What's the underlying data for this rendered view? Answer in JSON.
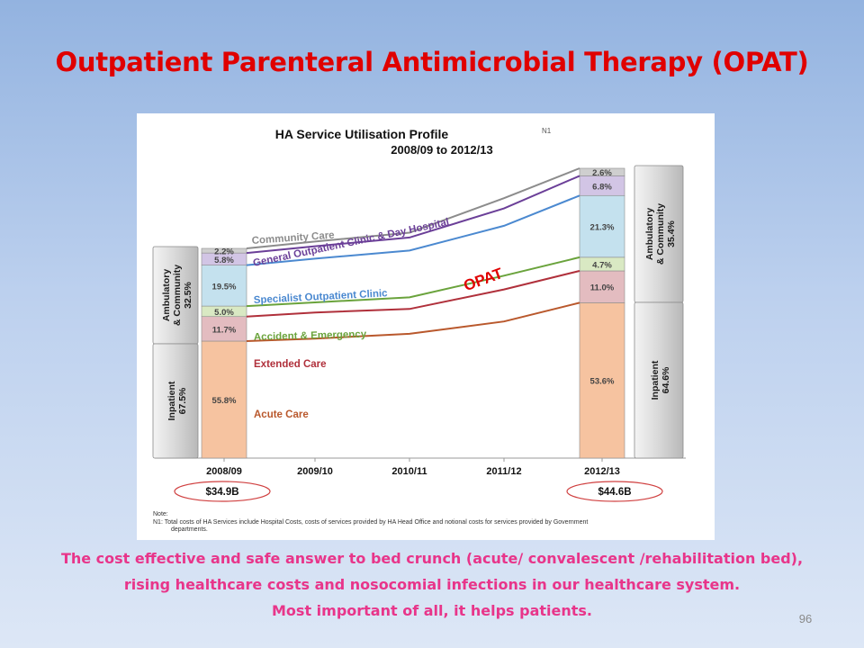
{
  "slide": {
    "title": "Outpatient Parenteral Antimicrobial Therapy (OPAT)",
    "captions": [
      "The cost effective and safe answer to bed crunch (acute/ convalescent /rehabilitation bed),",
      "rising healthcare costs and nosocomial infections in our healthcare system.",
      "Most important of all, it helps patients."
    ],
    "page_number": "96",
    "colors": {
      "title": "#e00000",
      "caption": "#e8358a",
      "opat_label": "#e00000"
    }
  },
  "chart_data": {
    "type": "area",
    "title": "HA Service Utilisation Profile",
    "title_note": "N1",
    "subtitle": "2008/09 to 2012/13",
    "categories": [
      "2008/09",
      "2009/10",
      "2010/11",
      "2011/12",
      "2012/13"
    ],
    "total_costs": {
      "2008/09": "$34.9B",
      "2012/13": "$44.6B"
    },
    "series": [
      {
        "name": "Acute Care",
        "color": "#f6c3a0",
        "line": "#b9582c",
        "share_2008_09": "55.8%",
        "share_2012_13": "53.6%",
        "index": [
          0,
          0.55,
          1.6,
          4.3,
          8.4
        ]
      },
      {
        "name": "Extended Care",
        "color": "#e3bcc0",
        "line": "#b0303b",
        "share_2008_09": "11.7%",
        "share_2012_13": "11.0%",
        "index": [
          0,
          0.85,
          1.6,
          5.7,
          9.6
        ]
      },
      {
        "name": "Accident & Emergency",
        "color": "#d9e9c3",
        "line": "#6aa33c",
        "share_2008_09": "5.0%",
        "share_2012_13": "4.7%",
        "index": [
          0,
          0.75,
          1.8,
          6.3,
          10.1
        ]
      },
      {
        "name": "Specialist Outpatient Clinic",
        "color": "#c4e1ee",
        "line": "#4b89d0",
        "share_2008_09": "19.5%",
        "share_2012_13": "21.3%",
        "index": [
          0,
          1.3,
          2.9,
          7.8,
          13.8
        ]
      },
      {
        "name": "General Outpatient Clinic & Day Hospital",
        "color": "#d2c5e5",
        "line": "#6b3f98",
        "share_2008_09": "5.8%",
        "share_2012_13": "6.8%",
        "index": [
          0,
          1.3,
          3.0,
          8.6,
          14.9
        ]
      },
      {
        "name": "Community Care",
        "color": "#cfcfcf",
        "line": "#8c8c8c",
        "share_2008_09": "2.2%",
        "share_2012_13": "2.6%",
        "index": [
          0,
          1.3,
          3.0,
          9.6,
          15.3
        ]
      }
    ],
    "groups": {
      "2008/09": [
        {
          "label": "Ambulatory & Community",
          "value": "32.5%"
        },
        {
          "label": "Inpatient",
          "value": "67.5%"
        }
      ],
      "2012/13": [
        {
          "label": "Ambulatory & Community",
          "value": "35.4%"
        },
        {
          "label": "Inpatient",
          "value": "64.6%"
        }
      ]
    },
    "annotation": "OPAT",
    "note_heading": "Note:",
    "note_text": "N1:  Total costs of HA Services include Hospital Costs, costs of services provided by HA Head Office and notional costs for services provided by Government departments."
  }
}
